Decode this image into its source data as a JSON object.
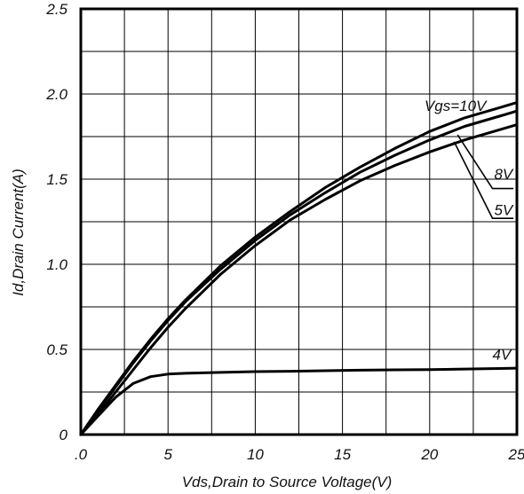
{
  "chart_data": {
    "type": "line",
    "xlabel": "Vds,Drain to Source Voltage(V)",
    "ylabel": "Id,Drain Current(A)",
    "xlim": [
      0,
      25
    ],
    "ylim": [
      0,
      2.5
    ],
    "x_ticks": [
      ".0",
      "5",
      "10",
      "15",
      "20",
      "25"
    ],
    "y_ticks": [
      "0",
      "0.5",
      "1.0",
      "1.5",
      "2.0",
      "2.5"
    ],
    "grid": true,
    "x": [
      0,
      1,
      2,
      3,
      4,
      5,
      6,
      8,
      10,
      12,
      14,
      16,
      18,
      20,
      22,
      24,
      25
    ],
    "series": [
      {
        "name": "Vgs=10V",
        "values": [
          0,
          0.15,
          0.29,
          0.43,
          0.56,
          0.68,
          0.79,
          0.99,
          1.16,
          1.31,
          1.45,
          1.57,
          1.68,
          1.78,
          1.86,
          1.92,
          1.95
        ]
      },
      {
        "name": "8V",
        "values": [
          0,
          0.14,
          0.28,
          0.42,
          0.55,
          0.67,
          0.78,
          0.97,
          1.14,
          1.29,
          1.42,
          1.54,
          1.64,
          1.73,
          1.81,
          1.87,
          1.9
        ]
      },
      {
        "name": "5V",
        "values": [
          0,
          0.12,
          0.25,
          0.38,
          0.51,
          0.63,
          0.74,
          0.94,
          1.11,
          1.26,
          1.38,
          1.49,
          1.58,
          1.66,
          1.73,
          1.79,
          1.82
        ]
      },
      {
        "name": "4V",
        "values": [
          0,
          0.11,
          0.22,
          0.3,
          0.34,
          0.355,
          0.36,
          0.365,
          0.37,
          0.372,
          0.375,
          0.378,
          0.38,
          0.382,
          0.385,
          0.388,
          0.39
        ]
      }
    ],
    "annotations": [
      {
        "text": "Vgs=10V",
        "x": 19.7,
        "y": 1.9
      },
      {
        "text": "8V",
        "x": 23.7,
        "y": 1.5
      },
      {
        "text": "5V",
        "x": 23.7,
        "y": 1.29
      },
      {
        "text": "4V",
        "x": 23.6,
        "y": 0.44
      }
    ]
  }
}
